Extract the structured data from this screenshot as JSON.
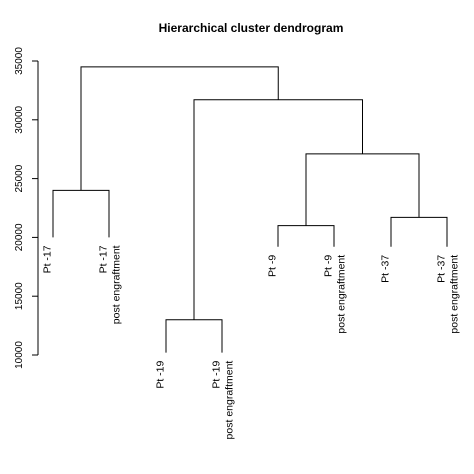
{
  "chart_data": {
    "type": "dendrogram",
    "title": "Hierarchical cluster dendrogram",
    "xlabel": "",
    "ylabel": "",
    "ylim": [
      10000,
      35000
    ],
    "y_ticks": [
      10000,
      15000,
      20000,
      25000,
      30000,
      35000
    ],
    "y_tick_labels": [
      "10000",
      "15000",
      "20000",
      "25000",
      "30000",
      "35000"
    ],
    "grid": false,
    "leaves": [
      {
        "label": "Pt -17",
        "label2": "",
        "height": 20000
      },
      {
        "label": "Pt -17",
        "label2": "post engraftment",
        "height": 20000
      },
      {
        "label": "Pt -19",
        "label2": "",
        "height": 10200
      },
      {
        "label": "Pt -19",
        "label2": "post engraftment",
        "height": 10200
      },
      {
        "label": "Pt -9",
        "label2": "",
        "height": 19200
      },
      {
        "label": "Pt -9",
        "label2": "post engraftment",
        "height": 19200
      },
      {
        "label": "Pt -37",
        "label2": "",
        "height": 19200
      },
      {
        "label": "Pt -37",
        "label2": "post engraftment",
        "height": 19200
      }
    ],
    "merges": [
      {
        "id": "A",
        "left": 0,
        "right": 1,
        "height": 24000
      },
      {
        "id": "B",
        "left": 2,
        "right": 3,
        "height": 13000
      },
      {
        "id": "C",
        "left": 4,
        "right": 5,
        "height": 21000
      },
      {
        "id": "D",
        "left": 6,
        "right": 7,
        "height": 21700
      },
      {
        "id": "E",
        "left": "C",
        "right": "D",
        "height": 27100
      },
      {
        "id": "F",
        "left": "B",
        "right": "E",
        "height": 31700
      },
      {
        "id": "G",
        "left": "A",
        "right": "F",
        "height": 34500
      }
    ]
  }
}
